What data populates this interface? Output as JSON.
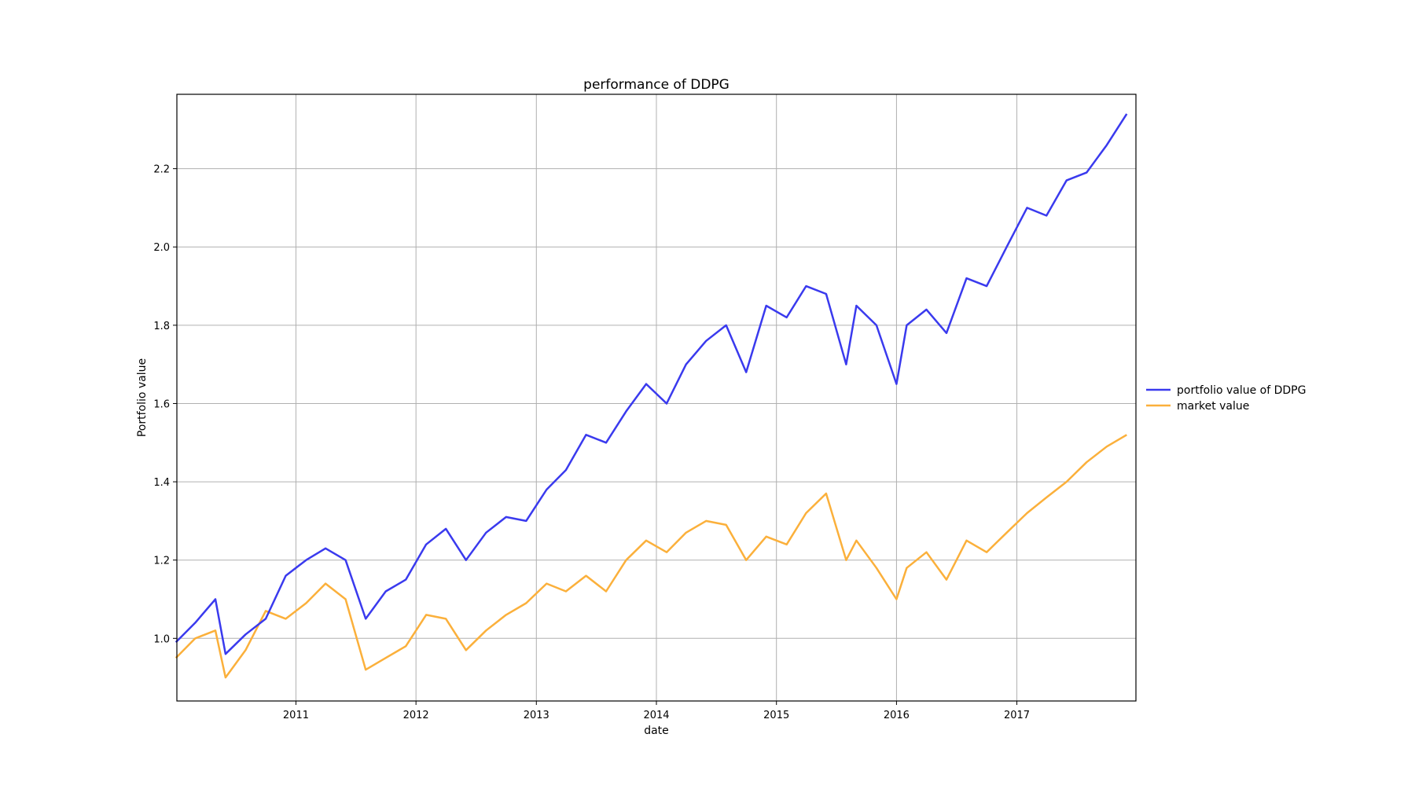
{
  "chart_data": {
    "type": "line",
    "title": "performance of DDPG",
    "xlabel": "date",
    "ylabel": "Portfolio value",
    "x_tick_labels": [
      "2011",
      "2012",
      "2013",
      "2014",
      "2015",
      "2016",
      "2017"
    ],
    "y_tick_labels": [
      "1.0",
      "1.2",
      "1.4",
      "1.6",
      "1.8",
      "2.0",
      "2.2"
    ],
    "xlim": [
      "2010-01-04",
      "2017-12-29"
    ],
    "ylim": [
      0.84,
      2.39
    ],
    "grid": true,
    "legend": "right, outside plot",
    "x": [
      "2010-01",
      "2010-03",
      "2010-05",
      "2010-06",
      "2010-08",
      "2010-10",
      "2010-12",
      "2011-02",
      "2011-04",
      "2011-06",
      "2011-08",
      "2011-10",
      "2011-12",
      "2012-02",
      "2012-04",
      "2012-06",
      "2012-08",
      "2012-10",
      "2012-12",
      "2013-02",
      "2013-04",
      "2013-06",
      "2013-08",
      "2013-10",
      "2013-12",
      "2014-02",
      "2014-04",
      "2014-06",
      "2014-08",
      "2014-10",
      "2014-12",
      "2015-02",
      "2015-04",
      "2015-06",
      "2015-08",
      "2015-09",
      "2015-11",
      "2016-01",
      "2016-02",
      "2016-04",
      "2016-06",
      "2016-08",
      "2016-10",
      "2016-12",
      "2017-02",
      "2017-04",
      "2017-06",
      "2017-08",
      "2017-10",
      "2017-12"
    ],
    "series": [
      {
        "name": "portfolio value of DDPG",
        "color": "#3a3aee",
        "values": [
          0.99,
          1.04,
          1.1,
          0.96,
          1.01,
          1.05,
          1.16,
          1.2,
          1.23,
          1.2,
          1.05,
          1.12,
          1.15,
          1.24,
          1.28,
          1.2,
          1.27,
          1.31,
          1.3,
          1.38,
          1.43,
          1.52,
          1.5,
          1.58,
          1.65,
          1.6,
          1.7,
          1.76,
          1.8,
          1.68,
          1.85,
          1.82,
          1.9,
          1.88,
          1.7,
          1.85,
          1.8,
          1.65,
          1.8,
          1.84,
          1.78,
          1.92,
          1.9,
          2.0,
          2.1,
          2.08,
          2.17,
          2.19,
          2.26,
          2.34
        ]
      },
      {
        "name": "market value",
        "color": "#fbb03b",
        "values": [
          0.95,
          1.0,
          1.02,
          0.9,
          0.97,
          1.07,
          1.05,
          1.09,
          1.14,
          1.1,
          0.92,
          0.95,
          0.98,
          1.06,
          1.05,
          0.97,
          1.02,
          1.06,
          1.09,
          1.14,
          1.12,
          1.16,
          1.12,
          1.2,
          1.25,
          1.22,
          1.27,
          1.3,
          1.29,
          1.2,
          1.26,
          1.24,
          1.32,
          1.37,
          1.2,
          1.25,
          1.18,
          1.1,
          1.18,
          1.22,
          1.15,
          1.25,
          1.22,
          1.27,
          1.32,
          1.36,
          1.4,
          1.45,
          1.49,
          1.52
        ]
      }
    ]
  }
}
